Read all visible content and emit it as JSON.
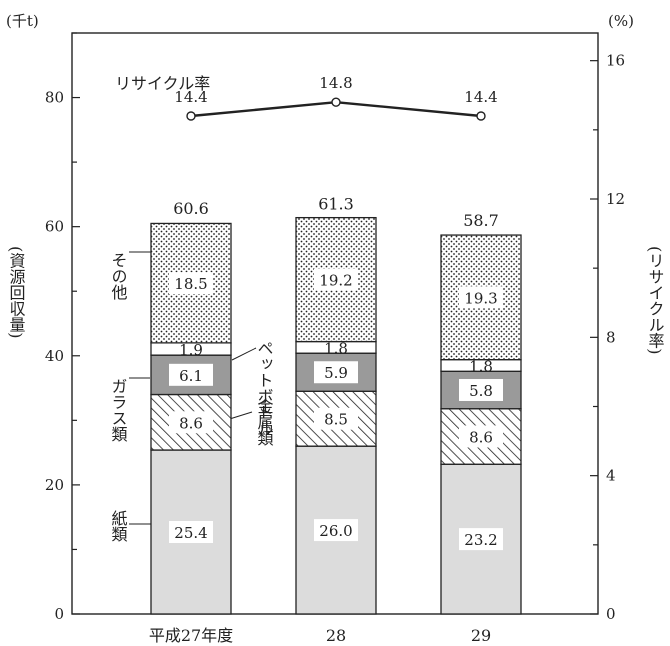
{
  "chart_data": {
    "type": "bar",
    "stacked": true,
    "categories": [
      "平成27年度",
      "28",
      "29"
    ],
    "left_axis": {
      "unit": "(千t)",
      "label": "(資源回収量)",
      "ticks": [
        "0",
        "20",
        "40",
        "60",
        "80"
      ],
      "range": [
        0,
        90
      ]
    },
    "right_axis": {
      "unit": "(%)",
      "label": "(リサイクル率)",
      "ticks": [
        "0",
        "4",
        "8",
        "12",
        "16"
      ],
      "range": [
        0,
        16.8
      ]
    },
    "series": [
      {
        "name": "紙類",
        "values": [
          25.4,
          26.0,
          23.2
        ],
        "labels": [
          "25.4",
          "26.0",
          "23.2"
        ],
        "pattern": "solid-light-gray"
      },
      {
        "name": "金属類",
        "values": [
          8.6,
          8.5,
          8.6
        ],
        "labels": [
          "8.6",
          "8.5",
          "8.6"
        ],
        "pattern": "diagonal-hatch"
      },
      {
        "name": "ガラス類",
        "values": [
          6.1,
          5.9,
          5.8
        ],
        "labels": [
          "6.1",
          "5.9",
          "5.8"
        ],
        "pattern": "solid-dark-gray"
      },
      {
        "name": "ペットボトル",
        "values": [
          1.9,
          1.8,
          1.8
        ],
        "labels": [
          "1.9",
          "1.8",
          "1.8"
        ],
        "pattern": "white"
      },
      {
        "name": "その他",
        "values": [
          18.5,
          19.2,
          19.3
        ],
        "labels": [
          "18.5",
          "19.2",
          "19.3"
        ],
        "pattern": "dots"
      }
    ],
    "totals": [
      "60.6",
      "61.3",
      "58.7"
    ],
    "totals_values": [
      60.6,
      61.3,
      58.7
    ],
    "line": {
      "name": "リサイクル率",
      "values": [
        14.4,
        14.8,
        14.4
      ],
      "labels": [
        "14.4",
        "14.8",
        "14.4"
      ]
    },
    "colors": {
      "paper": "#dcdcdc",
      "glass": "#9a9a9a",
      "line": "#222222"
    }
  }
}
